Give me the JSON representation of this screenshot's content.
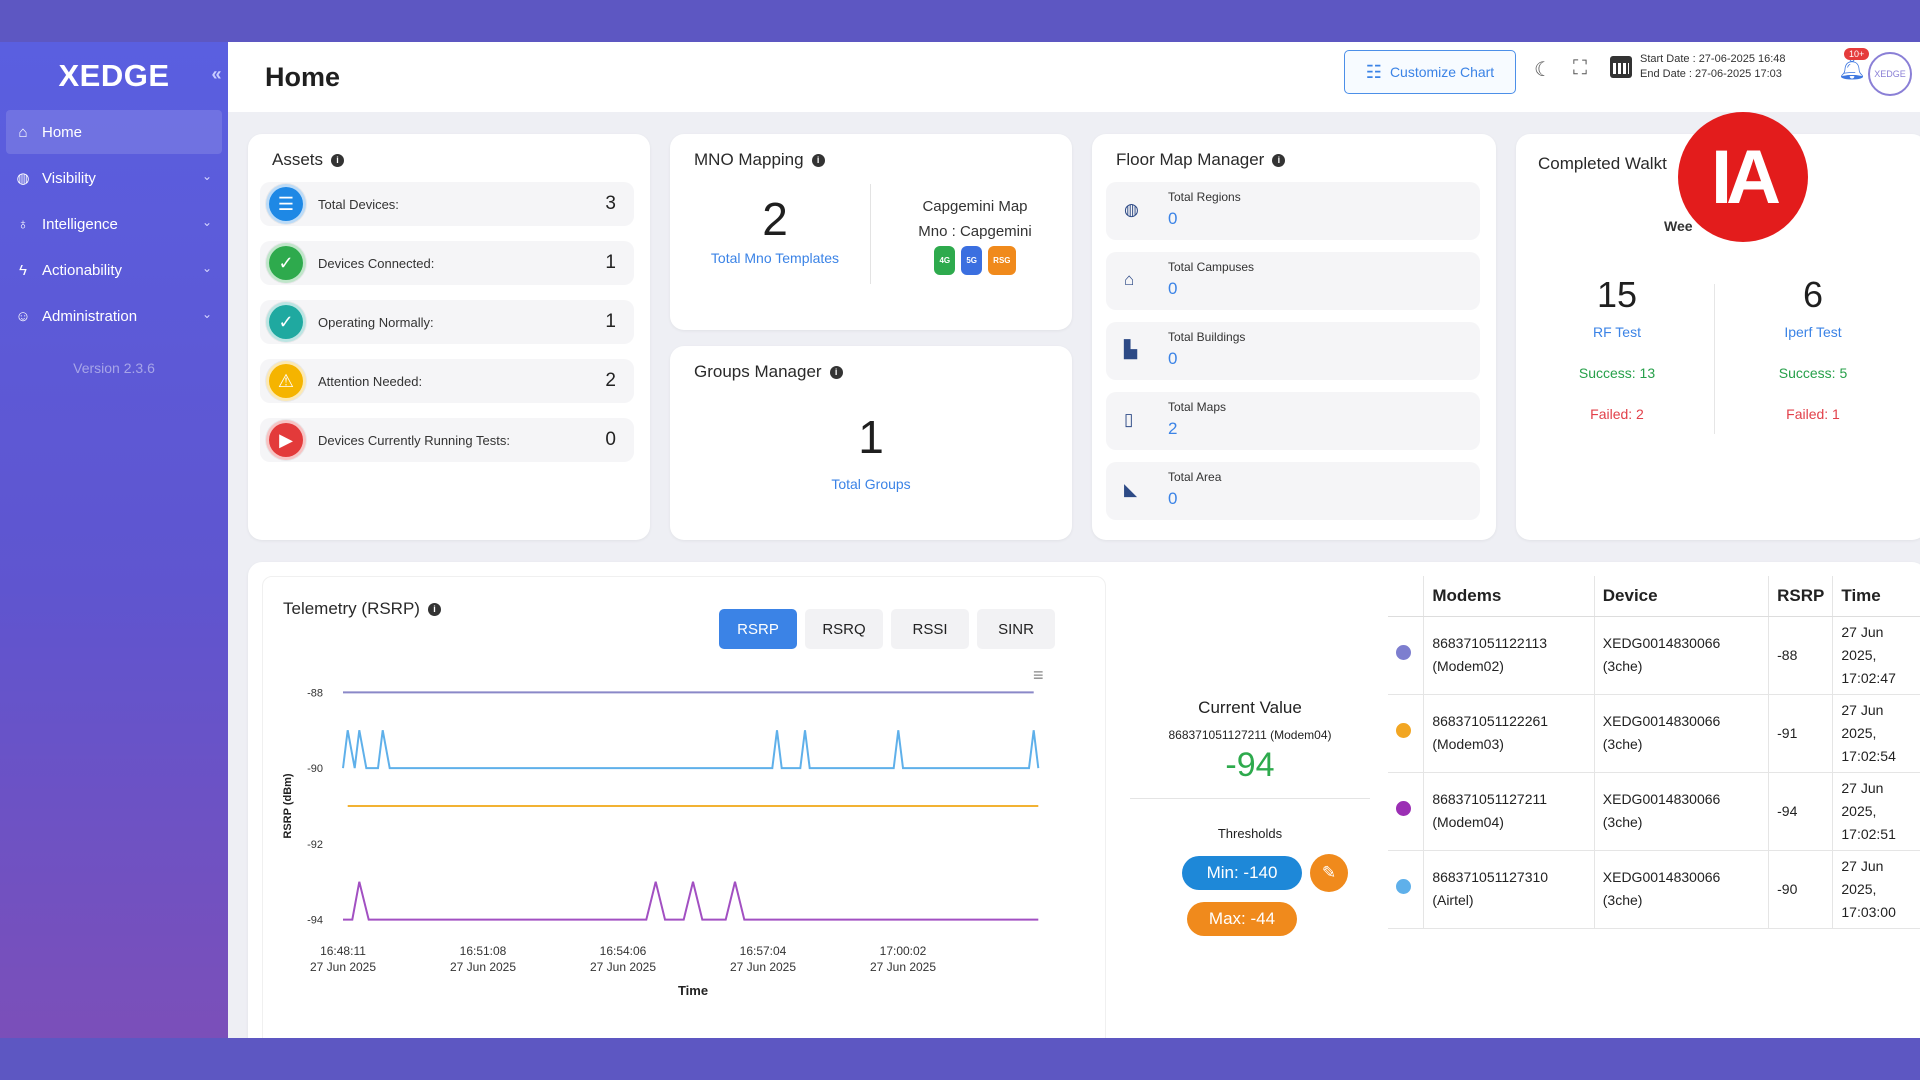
{
  "sidebar": {
    "brand": "XEDGE",
    "collapse_icon": "double-chevron-left-icon",
    "items": [
      {
        "label": "Home",
        "icon": "home-icon",
        "active": true
      },
      {
        "label": "Visibility",
        "icon": "globe-icon"
      },
      {
        "label": "Intelligence",
        "icon": "lightbulb-icon"
      },
      {
        "label": "Actionability",
        "icon": "bolt-icon"
      },
      {
        "label": "Administration",
        "icon": "users-gear-icon"
      }
    ],
    "version": "Version 2.3.6"
  },
  "header": {
    "title": "Home",
    "customize_label": "Customize Chart",
    "start_date": "Start Date : 27-06-2025 16:48",
    "end_date": "End Date : 27-06-2025 17:03",
    "notification_badge": "10+",
    "avatar_text": "XEDGE"
  },
  "assets": {
    "title": "Assets",
    "rows": [
      {
        "label": "Total Devices:",
        "value": "3",
        "color": "#1e88e5",
        "icon": "server-icon"
      },
      {
        "label": "Devices Connected:",
        "value": "1",
        "color": "#2eaa4d",
        "icon": "check-circle-icon"
      },
      {
        "label": "Operating Normally:",
        "value": "1",
        "color": "#1fa9a0",
        "icon": "check-icon"
      },
      {
        "label": "Attention Needed:",
        "value": "2",
        "color": "#f5b400",
        "icon": "warning-icon"
      },
      {
        "label": "Devices Currently Running Tests:",
        "value": "0",
        "color": "#e33a3a",
        "icon": "play-circle-icon"
      }
    ]
  },
  "mno": {
    "title": "MNO Mapping",
    "count": "2",
    "count_label": "Total Mno Templates",
    "map_name": "Capgemini Map",
    "mno_name": "Mno : Capgemini",
    "pills": [
      {
        "label": "4G",
        "color": "#2eaa4d"
      },
      {
        "label": "5G",
        "color": "#3b6fe0"
      },
      {
        "label": "RSG",
        "color": "#f08a1c"
      }
    ]
  },
  "groups": {
    "title": "Groups Manager",
    "count": "1",
    "count_label": "Total Groups"
  },
  "floor_map": {
    "title": "Floor Map Manager",
    "rows": [
      {
        "label": "Total Regions",
        "value": "0",
        "icon": "globe-icon"
      },
      {
        "label": "Total Campuses",
        "value": "0",
        "icon": "graduation-cap-icon"
      },
      {
        "label": "Total Buildings",
        "value": "0",
        "icon": "buildings-icon"
      },
      {
        "label": "Total Maps",
        "value": "2",
        "icon": "map-icon"
      },
      {
        "label": "Total Area",
        "value": "0",
        "icon": "ruler-icon"
      }
    ]
  },
  "walk": {
    "title": "Completed Walkt",
    "period": "Wee",
    "tests": [
      {
        "count": "15",
        "label": "RF Test",
        "success": "Success: 13",
        "failed": "Failed: 2"
      },
      {
        "count": "6",
        "label": "Iperf Test",
        "success": "Success: 5",
        "failed": "Failed: 1"
      }
    ]
  },
  "telemetry": {
    "title": "Telemetry (RSRP)",
    "tabs": [
      "RSRP",
      "RSRQ",
      "RSSI",
      "SINR"
    ],
    "active_tab": "RSRP",
    "menu_icon": "hamburger-menu-icon"
  },
  "chart_data": {
    "type": "line",
    "title": "Telemetry (RSRP)",
    "xlabel": "Time",
    "ylabel": "RSRP (dBm)",
    "ylim": [
      -94.3,
      -87.7
    ],
    "yticks": [
      -88,
      -90,
      -92,
      -94
    ],
    "x_range_minutes": [
      0,
      15
    ],
    "xticks": [
      {
        "t": 0,
        "line1": "16:48:11",
        "line2": "27 Jun 2025"
      },
      {
        "t": 3,
        "line1": "16:51:08",
        "line2": "27 Jun 2025"
      },
      {
        "t": 6,
        "line1": "16:54:06",
        "line2": "27 Jun 2025"
      },
      {
        "t": 9,
        "line1": "16:57:04",
        "line2": "27 Jun 2025"
      },
      {
        "t": 12,
        "line1": "17:00:02",
        "line2": "27 Jun 2025"
      }
    ],
    "series": [
      {
        "color": "#8a88c8",
        "points": [
          [
            0,
            -88
          ],
          [
            14.8,
            -88
          ]
        ]
      },
      {
        "color": "#5fb0ea",
        "points": [
          [
            0,
            -90
          ],
          [
            0.1,
            -89
          ],
          [
            0.25,
            -90
          ],
          [
            0.35,
            -89
          ],
          [
            0.5,
            -90
          ],
          [
            0.75,
            -90
          ],
          [
            0.85,
            -89
          ],
          [
            1,
            -90
          ],
          [
            9.2,
            -90
          ],
          [
            9.3,
            -89
          ],
          [
            9.4,
            -90
          ],
          [
            9.8,
            -90
          ],
          [
            9.9,
            -89
          ],
          [
            10,
            -90
          ],
          [
            11.8,
            -90
          ],
          [
            11.9,
            -89
          ],
          [
            12,
            -90
          ],
          [
            14.7,
            -90
          ],
          [
            14.8,
            -89
          ],
          [
            14.9,
            -90
          ]
        ]
      },
      {
        "color": "#f2b233",
        "points": [
          [
            0.1,
            -91
          ],
          [
            14.9,
            -91
          ]
        ]
      },
      {
        "color": "#a250c2",
        "points": [
          [
            0,
            -94
          ],
          [
            0.2,
            -94
          ],
          [
            0.35,
            -93
          ],
          [
            0.55,
            -94
          ],
          [
            6.5,
            -94
          ],
          [
            6.7,
            -93
          ],
          [
            6.9,
            -94
          ],
          [
            7.3,
            -94
          ],
          [
            7.5,
            -93
          ],
          [
            7.7,
            -94
          ],
          [
            8.2,
            -94
          ],
          [
            8.4,
            -93
          ],
          [
            8.6,
            -94
          ],
          [
            14.9,
            -94
          ]
        ]
      }
    ]
  },
  "current": {
    "title": "Current Value",
    "device": "868371051127211 (Modem04)",
    "value": "-94",
    "thresholds_label": "Thresholds",
    "min": "Min: -140",
    "max": "Max: -44",
    "edit_icon": "edit-icon"
  },
  "table": {
    "headers": [
      "Modems",
      "Device",
      "RSRP",
      "Time"
    ],
    "rows": [
      {
        "color": "#7d7ecf",
        "modem_id": "868371051122113",
        "modem_name": "(Modem02)",
        "device_id": "XEDG0014830066",
        "device_sub": "(3che)",
        "rsrp": "-88",
        "time1": "27 Jun",
        "time2": "2025,",
        "time3": "17:02:47"
      },
      {
        "color": "#f2a623",
        "modem_id": "868371051122261",
        "modem_name": "(Modem03)",
        "device_id": "XEDG0014830066",
        "device_sub": "(3che)",
        "rsrp": "-91",
        "time1": "27 Jun",
        "time2": "2025,",
        "time3": "17:02:54"
      },
      {
        "color": "#9b2fb4",
        "modem_id": "868371051127211",
        "modem_name": "(Modem04)",
        "device_id": "XEDG0014830066",
        "device_sub": "(3che)",
        "rsrp": "-94",
        "time1": "27 Jun",
        "time2": "2025,",
        "time3": "17:02:51"
      },
      {
        "color": "#5fb0ea",
        "modem_id": "868371051127310",
        "modem_name": "(Airtel)",
        "device_id": "XEDG0014830066",
        "device_sub": "(3che)",
        "rsrp": "-90",
        "time1": "27 Jun",
        "time2": "2025,",
        "time3": "17:03:00"
      }
    ]
  },
  "overlay": {
    "logo_text": "IA",
    "logo_color": "#e31c1c"
  }
}
